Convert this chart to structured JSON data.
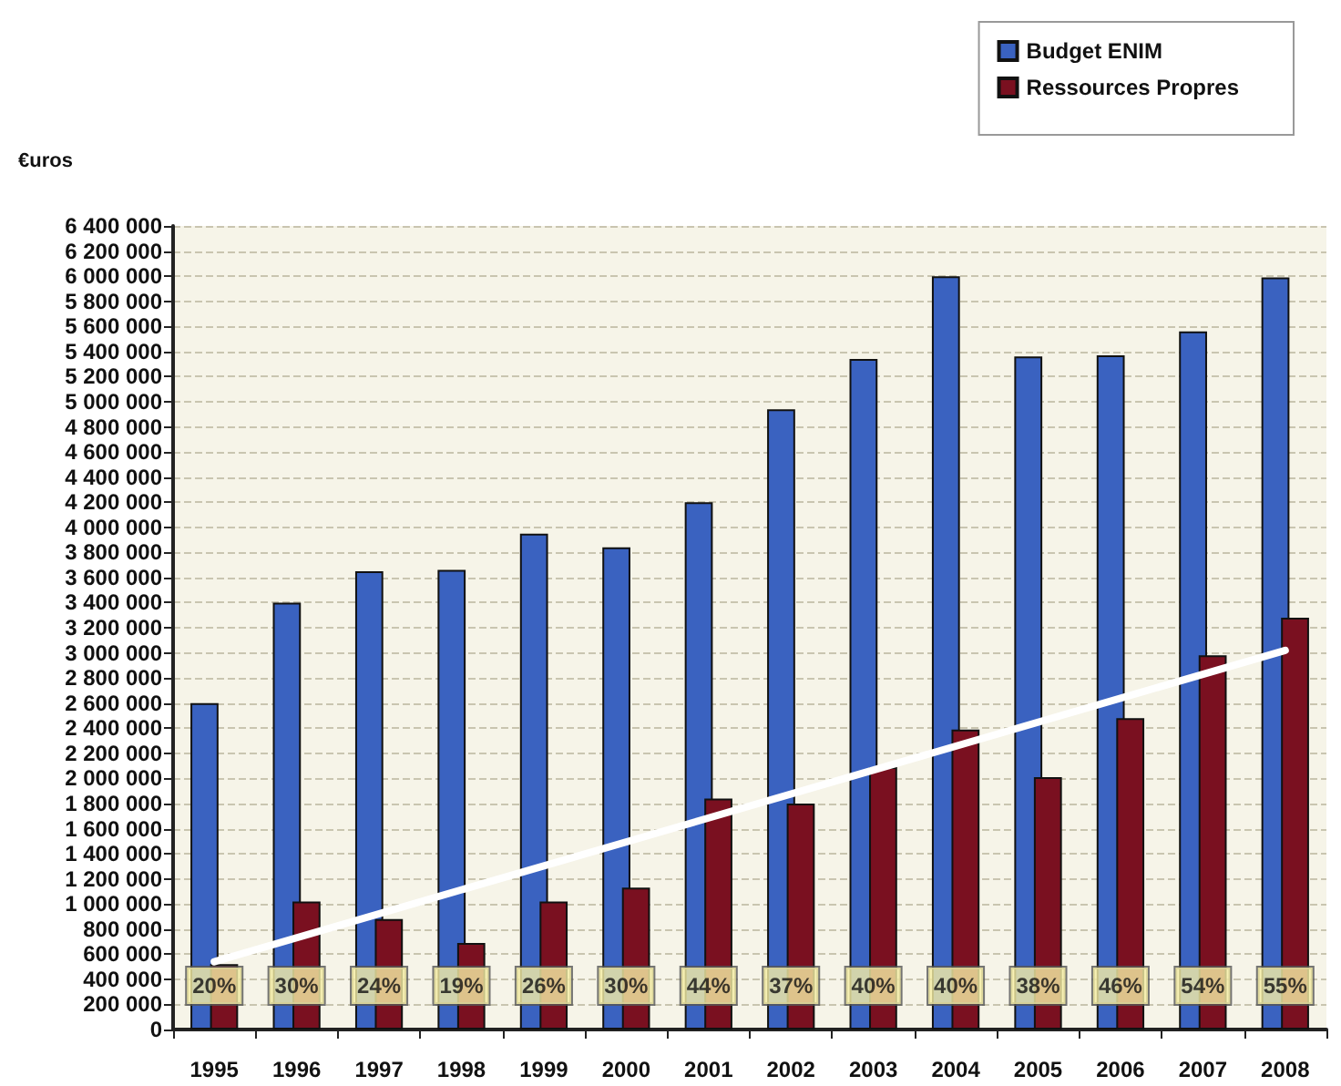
{
  "chart_data": {
    "type": "bar",
    "ylabel": "€uros",
    "categories": [
      "1995",
      "1996",
      "1997",
      "1998",
      "1999",
      "2000",
      "2001",
      "2002",
      "2003",
      "2004",
      "2005",
      "2006",
      "2007",
      "2008"
    ],
    "series": [
      {
        "name": "Budget ENIM",
        "color": "#3a62c0",
        "values": [
          2600000,
          3400000,
          3650000,
          3660000,
          3950000,
          3840000,
          4200000,
          4940000,
          5340000,
          6000000,
          5360000,
          5370000,
          5560000,
          5990000
        ]
      },
      {
        "name": "Ressources Propres",
        "color": "#7a1020",
        "values": [
          520000,
          1020000,
          880000,
          690000,
          1020000,
          1130000,
          1840000,
          1800000,
          2090000,
          2390000,
          2010000,
          2480000,
          2980000,
          3280000
        ]
      },
      {
        "type": "line",
        "color": "#ffffff",
        "values": [
          540000,
          null,
          null,
          null,
          null,
          null,
          null,
          null,
          null,
          null,
          null,
          null,
          null,
          3020000
        ]
      }
    ],
    "annotations": [
      {
        "text": "20%",
        "x": "1995"
      },
      {
        "text": "30%",
        "x": "1996"
      },
      {
        "text": "24%",
        "x": "1997"
      },
      {
        "text": "19%",
        "x": "1998"
      },
      {
        "text": "26%",
        "x": "1999"
      },
      {
        "text": "30%",
        "x": "2000"
      },
      {
        "text": "44%",
        "x": "2001"
      },
      {
        "text": "37%",
        "x": "2002"
      },
      {
        "text": "40%",
        "x": "2003"
      },
      {
        "text": "40%",
        "x": "2004"
      },
      {
        "text": "38%",
        "x": "2005"
      },
      {
        "text": "46%",
        "x": "2006"
      },
      {
        "text": "54%",
        "x": "2007"
      },
      {
        "text": "55%",
        "x": "2008"
      }
    ],
    "ylim": [
      0,
      6400000
    ],
    "yticks": [
      {
        "value": 0,
        "label": "0"
      },
      {
        "value": 200000,
        "label": "200 000"
      },
      {
        "value": 400000,
        "label": "400 000"
      },
      {
        "value": 600000,
        "label": "600 000"
      },
      {
        "value": 800000,
        "label": "800 000"
      },
      {
        "value": 1000000,
        "label": "1 000 000"
      },
      {
        "value": 1200000,
        "label": "1 200 000"
      },
      {
        "value": 1400000,
        "label": "1 400 000"
      },
      {
        "value": 1600000,
        "label": "1 600 000"
      },
      {
        "value": 1800000,
        "label": "1 800 000"
      },
      {
        "value": 2000000,
        "label": "2 000 000"
      },
      {
        "value": 2200000,
        "label": "2 200 000"
      },
      {
        "value": 2400000,
        "label": "2 400 000"
      },
      {
        "value": 2600000,
        "label": "2 600 000"
      },
      {
        "value": 2800000,
        "label": "2 800 000"
      },
      {
        "value": 3000000,
        "label": "3 000 000"
      },
      {
        "value": 3200000,
        "label": "3 200 000"
      },
      {
        "value": 3400000,
        "label": "3 400 000"
      },
      {
        "value": 3600000,
        "label": "3 600 000"
      },
      {
        "value": 3800000,
        "label": "3 800 000"
      },
      {
        "value": 4000000,
        "label": "4 000 000"
      },
      {
        "value": 4200000,
        "label": "4 200 000"
      },
      {
        "value": 4400000,
        "label": "4 400 000"
      },
      {
        "value": 4600000,
        "label": "4 600 000"
      },
      {
        "value": 4800000,
        "label": "4 800 000"
      },
      {
        "value": 5000000,
        "label": "5 000 000"
      },
      {
        "value": 5200000,
        "label": "5 200 000"
      },
      {
        "value": 5400000,
        "label": "5 400 000"
      },
      {
        "value": 5600000,
        "label": "5 600 000"
      },
      {
        "value": 5800000,
        "label": "5 800 000"
      },
      {
        "value": 6000000,
        "label": "6 000 000"
      },
      {
        "value": 6200000,
        "label": "6 200 000"
      },
      {
        "value": 6400000,
        "label": "6 400 000"
      }
    ],
    "grid": "y",
    "legend": "top right"
  }
}
